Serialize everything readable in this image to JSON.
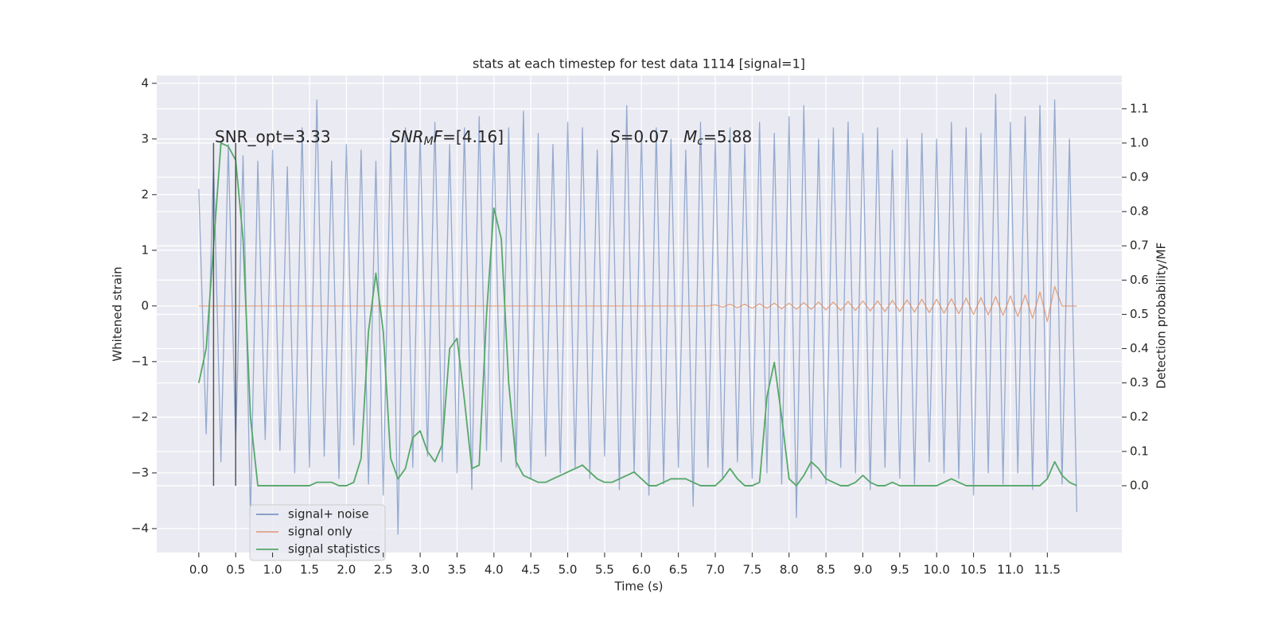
{
  "chart_data": {
    "type": "line",
    "title": "stats at each timestep for test data 1114 [signal=1]",
    "xlabel": "Time (s)",
    "ylabel": "Whitened strain",
    "y2label": "Detection probability/MF",
    "grid": true,
    "legend": "lower left",
    "xlim": [
      -0.57,
      12.51
    ],
    "ylim": [
      -4.43,
      4.14
    ],
    "y2lim": [
      -0.195,
      1.197
    ],
    "xticks": [
      {
        "value": 0,
        "label": "0.0"
      },
      0.5,
      {
        "value": 1,
        "label": "1.0"
      },
      1.5,
      {
        "value": 2,
        "label": "2.0"
      },
      2.5,
      {
        "value": 3,
        "label": "3.0"
      },
      3.5,
      {
        "value": 4,
        "label": "4.0"
      },
      4.5,
      {
        "value": 5,
        "label": "5.0"
      },
      5.5,
      {
        "value": 6,
        "label": "6.0"
      },
      6.5,
      {
        "value": 7,
        "label": "7.0"
      },
      7.5,
      {
        "value": 8,
        "label": "8.0"
      },
      8.5,
      {
        "value": 9,
        "label": "9.0"
      },
      9.5,
      {
        "value": 10,
        "label": "10.0"
      },
      10.5,
      {
        "value": 11,
        "label": "11.0"
      },
      11.5
    ],
    "yticks": [
      {
        "value": -4,
        "label": "−4"
      },
      {
        "value": -3,
        "label": "−3"
      },
      {
        "value": -2,
        "label": "−2"
      },
      {
        "value": -1,
        "label": "−1"
      },
      0,
      1,
      2,
      3,
      4
    ],
    "y2ticks": [
      {
        "value": 0,
        "label": "0.0"
      },
      0.1,
      0.2,
      0.3,
      0.4,
      0.5,
      0.6,
      0.7,
      0.8,
      0.9,
      {
        "value": 1,
        "label": "1.0"
      },
      1.1
    ],
    "x": [
      0,
      0.1,
      0.2,
      0.3,
      0.4,
      0.5,
      0.6,
      0.7,
      0.8,
      0.9,
      1,
      1.1,
      1.2,
      1.3,
      1.4,
      1.5,
      1.6,
      1.7,
      1.8,
      1.9,
      2,
      2.1,
      2.2,
      2.3,
      2.4,
      2.5,
      2.6,
      2.7,
      2.8,
      2.9,
      3,
      3.1,
      3.2,
      3.3,
      3.4,
      3.5,
      3.6,
      3.7,
      3.8,
      3.9,
      4,
      4.1,
      4.2,
      4.3,
      4.4,
      4.5,
      4.6,
      4.7,
      4.8,
      4.9,
      5,
      5.1,
      5.2,
      5.3,
      5.4,
      5.5,
      5.6,
      5.7,
      5.8,
      5.9,
      6,
      6.1,
      6.2,
      6.3,
      6.4,
      6.5,
      6.6,
      6.7,
      6.8,
      6.9,
      7,
      7.1,
      7.2,
      7.3,
      7.4,
      7.5,
      7.6,
      7.7,
      7.8,
      7.9,
      8,
      8.1,
      8.2,
      8.3,
      8.4,
      8.5,
      8.6,
      8.7,
      8.8,
      8.9,
      9,
      9.1,
      9.2,
      9.3,
      9.4,
      9.5,
      9.6,
      9.7,
      9.8,
      9.9,
      10,
      10.1,
      10.2,
      10.3,
      10.4,
      10.5,
      10.6,
      10.7,
      10.8,
      10.9,
      11,
      11.1,
      11.2,
      11.3,
      11.4,
      11.5,
      11.6,
      11.7,
      11.8,
      11.9
    ],
    "series": [
      {
        "name": "signal+ noise",
        "color": "#4c72b0",
        "values": [
          2.1,
          -2.3,
          2.6,
          -2.8,
          2.9,
          -2.5,
          2.7,
          -3.8,
          2.6,
          -2.4,
          2.8,
          -2.6,
          2.5,
          -3.0,
          3.2,
          -2.9,
          3.7,
          -2.7,
          2.6,
          -3.1,
          2.9,
          -2.5,
          2.8,
          -3.2,
          2.6,
          -3.4,
          3.0,
          -4.1,
          3.2,
          -2.9,
          3.1,
          -2.7,
          3.3,
          -2.8,
          2.9,
          -3.0,
          3.2,
          -3.3,
          3.4,
          -2.6,
          3.0,
          -2.8,
          3.2,
          -2.9,
          3.5,
          -3.1,
          3.1,
          -2.7,
          2.9,
          -3.0,
          3.3,
          -2.9,
          3.2,
          -3.1,
          2.8,
          -2.7,
          3.0,
          -3.3,
          3.6,
          -3.0,
          3.1,
          -3.4,
          3.2,
          -3.2,
          3.0,
          -2.9,
          2.8,
          -3.6,
          3.3,
          -2.9,
          3.0,
          -3.1,
          3.2,
          -2.8,
          2.9,
          -3.1,
          3.3,
          -3.0,
          3.1,
          -3.2,
          3.4,
          -3.8,
          3.6,
          -3.1,
          3.0,
          -3.2,
          3.2,
          -2.9,
          3.3,
          -3.0,
          3.1,
          -3.3,
          3.2,
          -2.9,
          2.8,
          -3.1,
          3.0,
          -3.2,
          3.1,
          -2.8,
          3.0,
          -3.0,
          3.3,
          -3.1,
          3.2,
          -3.4,
          3.1,
          -3.0,
          3.8,
          -3.2,
          3.3,
          -3.0,
          3.4,
          -3.3,
          3.6,
          -3.1,
          3.7,
          -3.2,
          3.0,
          -3.7
        ]
      },
      {
        "name": "signal only",
        "color": "#dd8452",
        "values": [
          0,
          0,
          0,
          0,
          0,
          0,
          0,
          0,
          0,
          0,
          0,
          0,
          0,
          0,
          0,
          0,
          0,
          0,
          0,
          0,
          0,
          0,
          0,
          0,
          0,
          0,
          0,
          0,
          0,
          0,
          0,
          0,
          0,
          0,
          0,
          0,
          0,
          0,
          0,
          0,
          0,
          0,
          0,
          0,
          0,
          0,
          0,
          0,
          0,
          0,
          0,
          0,
          0,
          0,
          0,
          0,
          0,
          0,
          0,
          0,
          0,
          0,
          0,
          0,
          0,
          0,
          0,
          0,
          0,
          0,
          0.02,
          -0.02,
          0.03,
          -0.03,
          0.03,
          -0.04,
          0.04,
          -0.04,
          0.05,
          -0.05,
          0.05,
          -0.06,
          0.06,
          -0.06,
          0.07,
          -0.07,
          0.07,
          -0.08,
          0.08,
          -0.08,
          0.09,
          -0.09,
          0.09,
          -0.1,
          0.1,
          -0.1,
          0.11,
          -0.11,
          0.12,
          -0.12,
          0.12,
          -0.13,
          0.13,
          -0.14,
          0.14,
          -0.15,
          0.15,
          -0.16,
          0.17,
          -0.17,
          0.18,
          -0.19,
          0.2,
          -0.22,
          0.25,
          -0.28,
          0.35,
          0,
          0,
          0
        ]
      },
      {
        "name": "signal statistics",
        "color": "#55a868",
        "axis": "y2",
        "values": [
          0.3,
          0.4,
          0.7,
          1.0,
          0.99,
          0.95,
          0.72,
          0.2,
          0.0,
          0.0,
          0.0,
          0.0,
          0.0,
          0.0,
          0.0,
          0.0,
          0.01,
          0.01,
          0.01,
          0.0,
          0.0,
          0.01,
          0.08,
          0.45,
          0.62,
          0.45,
          0.08,
          0.02,
          0.05,
          0.14,
          0.16,
          0.1,
          0.07,
          0.12,
          0.4,
          0.43,
          0.25,
          0.05,
          0.06,
          0.5,
          0.81,
          0.72,
          0.3,
          0.07,
          0.03,
          0.02,
          0.01,
          0.01,
          0.02,
          0.03,
          0.04,
          0.05,
          0.06,
          0.04,
          0.02,
          0.01,
          0.01,
          0.02,
          0.03,
          0.04,
          0.02,
          0.0,
          0.0,
          0.01,
          0.02,
          0.02,
          0.02,
          0.01,
          0.0,
          0.0,
          0.0,
          0.02,
          0.05,
          0.02,
          0.0,
          0.0,
          0.01,
          0.26,
          0.36,
          0.2,
          0.02,
          0.0,
          0.03,
          0.07,
          0.05,
          0.02,
          0.01,
          0.0,
          0.0,
          0.01,
          0.03,
          0.01,
          0.0,
          0.0,
          0.01,
          0.0,
          0.0,
          0.0,
          0.0,
          0.0,
          0.0,
          0.01,
          0.02,
          0.01,
          0.0,
          0.0,
          0.0,
          0.0,
          0.0,
          0.0,
          0.0,
          0.0,
          0.0,
          0.0,
          0.0,
          0.02,
          0.07,
          0.03,
          0.01,
          0.0
        ]
      }
    ],
    "vlines": [
      {
        "x": 0.2,
        "ymin": 0,
        "ymax": 1,
        "color": "#555555"
      },
      {
        "x": 0.5,
        "ymin": 0,
        "ymax": 1,
        "color": "#555555"
      }
    ],
    "annotations": [
      {
        "parts": [
          {
            "text": "SNR_opt=3.33"
          }
        ]
      },
      {
        "parts": [
          {
            "text": "SNR",
            "style": "italic"
          },
          {
            "text": "M",
            "style": "sub"
          },
          {
            "text": "F",
            "style": "italic"
          },
          {
            "text": "=[4.16]"
          }
        ]
      },
      {
        "parts": [
          {
            "text": "S",
            "style": "italic"
          },
          {
            "text": "=0.07"
          }
        ]
      },
      {
        "parts": [
          {
            "text": "M",
            "style": "italic"
          },
          {
            "text": "c",
            "style": "sub"
          },
          {
            "text": "=5.88"
          }
        ]
      }
    ]
  }
}
